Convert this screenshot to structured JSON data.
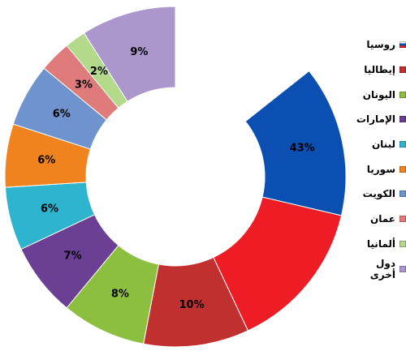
{
  "chart_data": {
    "type": "pie",
    "style": "donut",
    "title": "",
    "legend_position": "right",
    "categories": [
      "روسيا",
      "إيطاليا",
      "اليونان",
      "الإمارات",
      "لبنان",
      "سوريا",
      "الكويت",
      "عمان",
      "ألمانيا",
      "دول أخرى"
    ],
    "values": [
      43,
      10,
      8,
      7,
      6,
      6,
      6,
      3,
      2,
      9
    ],
    "slices": [
      {
        "label": "روسيا",
        "value": 43,
        "colors": [
          "#ffffff",
          "#0b4fb3",
          "#ee1c25"
        ],
        "display": "43%"
      },
      {
        "label": "إيطاليا",
        "value": 10,
        "colors": [
          "#c0302f"
        ],
        "display": "10%"
      },
      {
        "label": "اليونان",
        "value": 8,
        "colors": [
          "#8cbf3f"
        ],
        "display": "8%"
      },
      {
        "label": "الإمارات",
        "value": 7,
        "colors": [
          "#6b3f93"
        ],
        "display": "7%"
      },
      {
        "label": "لبنان",
        "value": 6,
        "colors": [
          "#2fb4cf"
        ],
        "display": "6%"
      },
      {
        "label": "سوريا",
        "value": 6,
        "colors": [
          "#f0831e"
        ],
        "display": "6%"
      },
      {
        "label": "الكويت",
        "value": 6,
        "colors": [
          "#6f93cf"
        ],
        "display": "6%"
      },
      {
        "label": "عمان",
        "value": 3,
        "colors": [
          "#e07b7b"
        ],
        "display": "3%"
      },
      {
        "label": "ألمانيا",
        "value": 2,
        "colors": [
          "#b3d98a"
        ],
        "display": "2%"
      },
      {
        "label": "دول أخرى",
        "value": 9,
        "colors": [
          "#ab97cb"
        ],
        "display": "9%"
      }
    ]
  }
}
